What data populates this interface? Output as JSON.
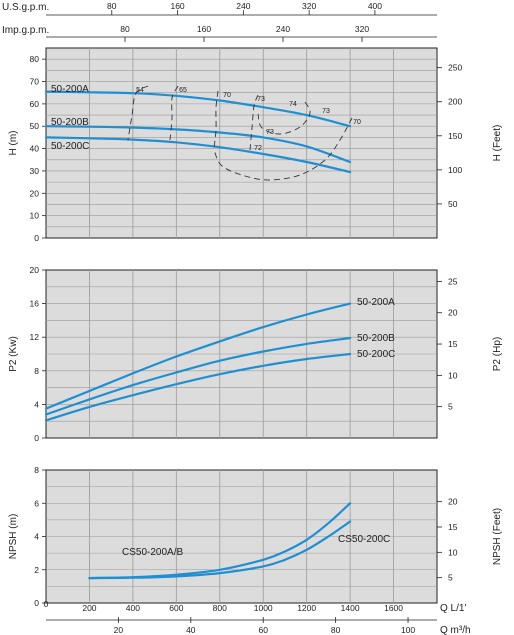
{
  "colors": {
    "curve": "#1f8fd1",
    "grid": "#9a9a9a",
    "panel": "#dcdcdc",
    "ink": "#222222"
  },
  "chart_data": [
    {
      "type": "line",
      "top_axes": {
        "usgpm": {
          "label": "U.S.g.p.m.",
          "ticks": [
            80,
            160,
            240,
            320,
            400
          ]
        },
        "impgpm": {
          "label": "Imp.g.p.m.",
          "ticks": [
            80,
            160,
            240,
            320
          ]
        }
      },
      "ylabel": "H (m)",
      "y2label": "H (Feet)",
      "ylim": [
        0,
        85
      ],
      "yticks": [
        0,
        10,
        20,
        30,
        40,
        50,
        60,
        70,
        80
      ],
      "y2ticks": [
        50,
        100,
        150,
        200,
        250
      ],
      "xlim": [
        0,
        1800
      ],
      "grid": true,
      "series": [
        {
          "name": "50-200A",
          "x": [
            0,
            200,
            400,
            600,
            800,
            1000,
            1200,
            1400
          ],
          "y": [
            65.5,
            65.2,
            64.8,
            63.6,
            61.5,
            58.5,
            55.0,
            50.0
          ]
        },
        {
          "name": "50-200B",
          "x": [
            0,
            200,
            400,
            600,
            800,
            1000,
            1200,
            1400
          ],
          "y": [
            50.0,
            49.8,
            49.4,
            48.6,
            47.2,
            45.0,
            41.0,
            34.0
          ]
        },
        {
          "name": "50-200C",
          "x": [
            0,
            200,
            400,
            600,
            800,
            1000,
            1200,
            1400
          ],
          "y": [
            45.0,
            44.6,
            44.0,
            42.8,
            40.6,
            37.6,
            34.0,
            29.5
          ]
        }
      ],
      "efficiency_labels": [
        "54",
        "65",
        "70",
        "73",
        "74",
        "73",
        "70",
        "73",
        "72"
      ]
    },
    {
      "type": "line",
      "ylabel": "P2 (Kw)",
      "y2label": "P2 (Hp)",
      "ylim": [
        0,
        20
      ],
      "yticks": [
        0,
        4,
        8,
        12,
        16,
        20
      ],
      "y2ticks": [
        5,
        10,
        15,
        20,
        25
      ],
      "xlim": [
        0,
        1800
      ],
      "grid": true,
      "series": [
        {
          "name": "50-200A",
          "x": [
            0,
            200,
            400,
            600,
            800,
            1000,
            1200,
            1400
          ],
          "y": [
            3.5,
            5.6,
            7.7,
            9.7,
            11.5,
            13.2,
            14.7,
            16.0
          ]
        },
        {
          "name": "50-200B",
          "x": [
            0,
            200,
            400,
            600,
            800,
            1000,
            1200,
            1400
          ],
          "y": [
            2.8,
            4.6,
            6.3,
            7.8,
            9.2,
            10.3,
            11.2,
            11.9
          ]
        },
        {
          "name": "50-200C",
          "x": [
            0,
            200,
            400,
            600,
            800,
            1000,
            1200,
            1400
          ],
          "y": [
            2.1,
            3.7,
            5.1,
            6.4,
            7.6,
            8.6,
            9.4,
            10.0
          ]
        }
      ]
    },
    {
      "type": "line",
      "ylabel": "NPSH (m)",
      "y2label": "NPSH (Feet)",
      "ylim": [
        0,
        8
      ],
      "yticks": [
        0,
        2,
        4,
        6,
        8
      ],
      "y2ticks": [
        5,
        10,
        15,
        20
      ],
      "xlim": [
        0,
        1800
      ],
      "xticks": [
        200,
        400,
        600,
        800,
        1000,
        1200,
        1400,
        1600
      ],
      "xlabel": "Q L/1'",
      "x2ticks": [
        20,
        40,
        60,
        80,
        100
      ],
      "x2label": "Q m³/h",
      "grid": true,
      "series": [
        {
          "name": "CS50-200A/B",
          "x": [
            200,
            400,
            600,
            800,
            1000,
            1100,
            1200,
            1300,
            1400
          ],
          "y": [
            1.5,
            1.55,
            1.7,
            2.0,
            2.6,
            3.1,
            3.8,
            4.8,
            6.0
          ]
        },
        {
          "name": "CS50-200C",
          "x": [
            200,
            400,
            600,
            800,
            1000,
            1100,
            1200,
            1300,
            1400
          ],
          "y": [
            1.5,
            1.52,
            1.6,
            1.8,
            2.2,
            2.6,
            3.2,
            4.0,
            4.9
          ]
        }
      ]
    }
  ]
}
